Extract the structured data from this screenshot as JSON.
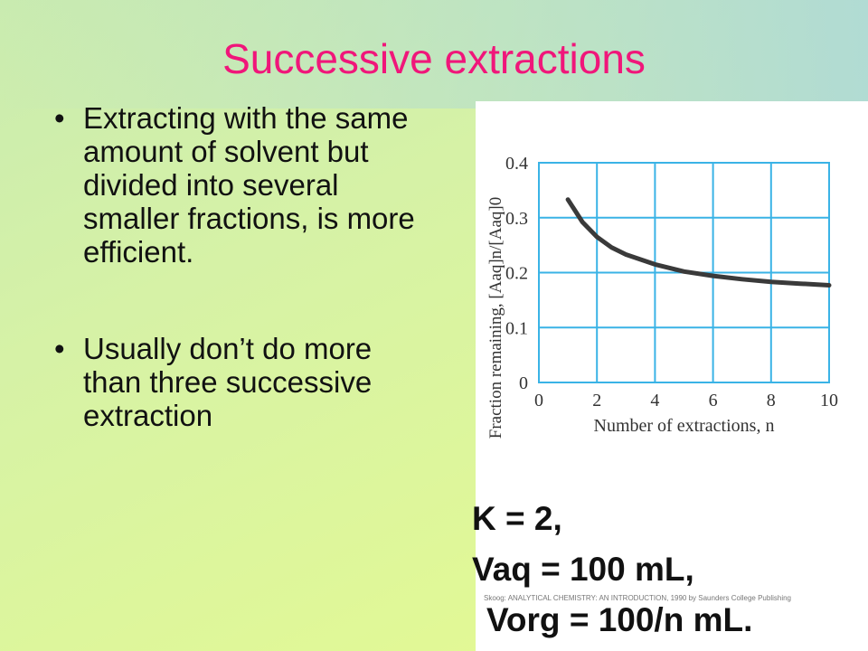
{
  "slide": {
    "title": "Successive extractions",
    "bullets": [
      "Extracting with the same amount of solvent but divided into several smaller fractions, is more efficient.",
      "Usually don’t do more than three successive extraction"
    ],
    "params": [
      "K = 2,",
      "Vaq = 100 mL,",
      "Vorg = 100/n mL."
    ],
    "credit": "Skoog: ANALYTICAL CHEMISTRY: AN INTRODUCTION, 1990 by Saunders College Publishing",
    "colors": {
      "title": "#f0167a",
      "grid": "#3ab3e6",
      "curve": "#3a3a3a",
      "axis_text": "#333333"
    }
  },
  "chart_data": {
    "type": "line",
    "xlabel": "Number of extractions, n",
    "ylabel": "Fraction remaining, [Aaq]n/[Aaq]0",
    "xlim": [
      0,
      10
    ],
    "ylim": [
      0,
      0.4
    ],
    "x_ticks": [
      0,
      2,
      4,
      6,
      8,
      10
    ],
    "y_ticks": [
      0,
      0.1,
      0.2,
      0.3,
      0.4
    ],
    "x_tick_labels": [
      "0",
      "2",
      "4",
      "6",
      "8",
      "10"
    ],
    "y_tick_labels": [
      "0",
      "0.1",
      "0.2",
      "0.3",
      "0.4"
    ],
    "grid": true,
    "series": [
      {
        "x": [
          1,
          1.5,
          2,
          2.5,
          3,
          4,
          5,
          6,
          7,
          8,
          9,
          10
        ],
        "y": [
          0.333,
          0.292,
          0.265,
          0.246,
          0.233,
          0.215,
          0.202,
          0.194,
          0.188,
          0.183,
          0.18,
          0.177
        ]
      }
    ]
  }
}
